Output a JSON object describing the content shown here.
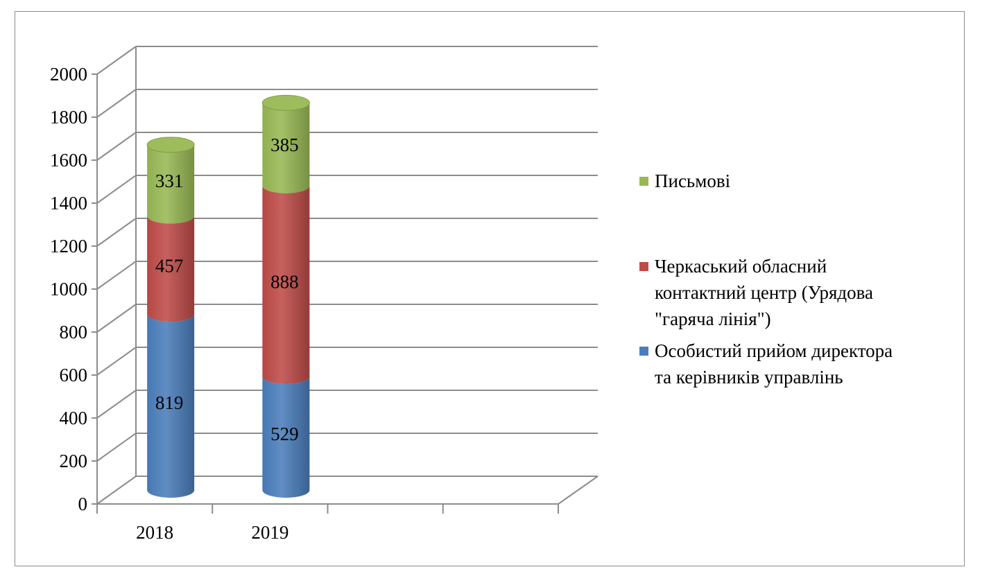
{
  "chart_data": {
    "type": "bar",
    "stacked": true,
    "style": "3d-cylinder",
    "title": "",
    "xlabel": "",
    "ylabel": "",
    "ylim": [
      0,
      2000
    ],
    "y_ticks": [
      "0",
      "200",
      "400",
      "600",
      "800",
      "1000",
      "1200",
      "1400",
      "1600",
      "1800",
      "2000"
    ],
    "grid": true,
    "legend_position": "right",
    "categories": [
      "2018",
      "2019"
    ],
    "series": [
      {
        "name_lines": [
          "Особистий прийом директора",
          "та керівників  управлінь"
        ],
        "values": [
          819,
          529
        ],
        "color": "#4a7ebb"
      },
      {
        "name_lines": [
          "Черкаський обласний",
          "контактний центр (Урядова",
          "\"гаряча лінія\")"
        ],
        "values": [
          457,
          888
        ],
        "color": "#be4b48"
      },
      {
        "name_lines": [
          "Письмові"
        ],
        "values": [
          331,
          385
        ],
        "color": "#98b954"
      }
    ]
  }
}
